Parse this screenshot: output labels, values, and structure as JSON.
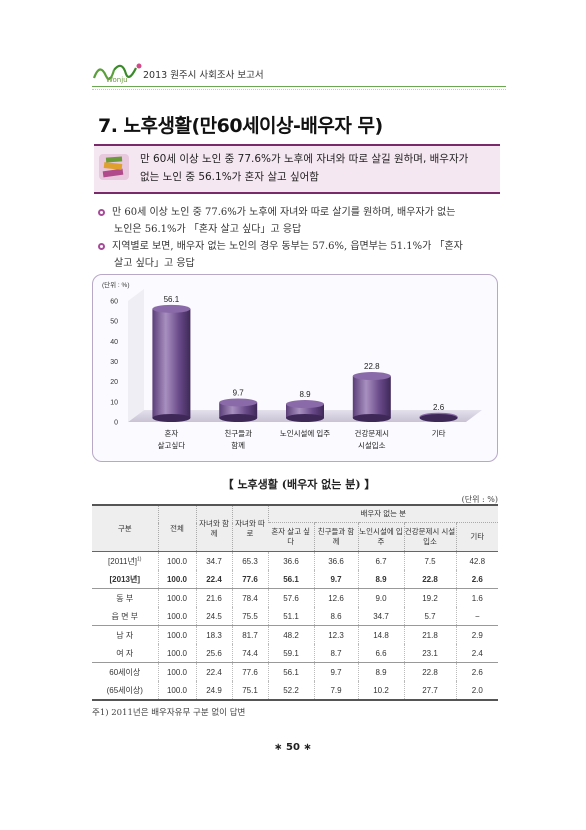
{
  "header": {
    "logo_text": "ㅁㅐ이",
    "logo_sub": "Wonju",
    "report_title": "2013 원주시 사회조사 보고서"
  },
  "section": {
    "title": "7. 노후생활(만60세이상-배우자 무)"
  },
  "summary": {
    "line1": "만 60세 이상 노인 중 77.6%가 노후에 자녀와 따로 살길 원하며, 배우자가",
    "line2": "없는 노인 중 56.1%가 혼자 살고 싶어함"
  },
  "bullets": [
    {
      "line1": "만 60세 이상 노인 중 77.6%가 노후에 자녀와 따로 살기를 원하며, 배우자가 없는",
      "line2": "노인은 56.1%가 「혼자 살고 싶다」고 응답"
    },
    {
      "line1": "지역별로 보면, 배우자 없는 노인의 경우 동부는 57.6%, 읍면부는 51.1%가 「혼자",
      "line2": "살고 싶다」고 응답"
    }
  ],
  "chart_data": {
    "type": "bar",
    "unit_label": "(단위 : %)",
    "categories": [
      [
        "혼자",
        "살고싶다"
      ],
      [
        "친구들과",
        "함께"
      ],
      [
        "노인시설에 입주"
      ],
      [
        "건강문제시",
        "시설입소"
      ],
      [
        "기타"
      ]
    ],
    "values": [
      56.1,
      9.7,
      8.9,
      22.8,
      2.6
    ],
    "value_labels": [
      "56.1",
      "9.7",
      "8.9",
      "22.8",
      "2.6"
    ],
    "yticks": [
      "0",
      "10",
      "20",
      "30",
      "40",
      "50",
      "60"
    ],
    "ylim": [
      0,
      60
    ],
    "bar_color": "#5b3e78",
    "bar_highlight": "#a890c0"
  },
  "table": {
    "title": "【 노후생활 (배우자 없는 분) 】",
    "unit": "(단위 : %)",
    "group_header": "배우자 없는 분",
    "columns": [
      "구분",
      "전체",
      "자녀와 함께",
      "자녀와 따로",
      "혼자 살고 싶다",
      "친구들과 함께",
      "노인시설에 입주",
      "건강문제시 시설입소",
      "기타"
    ],
    "rows": [
      {
        "label": "[2011년]",
        "sup": "1)",
        "values": [
          "100.0",
          "34.7",
          "65.3",
          "36.6",
          "36.6",
          "6.7",
          "7.5",
          "42.8"
        ]
      },
      {
        "label": "[2013년]",
        "values": [
          "100.0",
          "22.4",
          "77.6",
          "56.1",
          "9.7",
          "8.9",
          "22.8",
          "2.6"
        ]
      },
      {
        "label": "동 부",
        "values": [
          "100.0",
          "21.6",
          "78.4",
          "57.6",
          "12.6",
          "9.0",
          "19.2",
          "1.6"
        ]
      },
      {
        "label": "읍 면 부",
        "values": [
          "100.0",
          "24.5",
          "75.5",
          "51.1",
          "8.6",
          "34.7",
          "5.7",
          "−"
        ]
      },
      {
        "label": "남 자",
        "values": [
          "100.0",
          "18.3",
          "81.7",
          "48.2",
          "12.3",
          "14.8",
          "21.8",
          "2.9"
        ]
      },
      {
        "label": "여 자",
        "values": [
          "100.0",
          "25.6",
          "74.4",
          "59.1",
          "8.7",
          "6.6",
          "23.1",
          "2.4"
        ]
      },
      {
        "label": "60세이상",
        "values": [
          "100.0",
          "22.4",
          "77.6",
          "56.1",
          "9.7",
          "8.9",
          "22.8",
          "2.6"
        ]
      },
      {
        "label": "(65세이상)",
        "values": [
          "100.0",
          "24.9",
          "75.1",
          "52.2",
          "7.9",
          "10.2",
          "27.7",
          "2.0"
        ]
      }
    ]
  },
  "footnote": "주1) 2011년은 배우자유무 구분 없이 답변",
  "page_number": "∗ 50 ∗"
}
